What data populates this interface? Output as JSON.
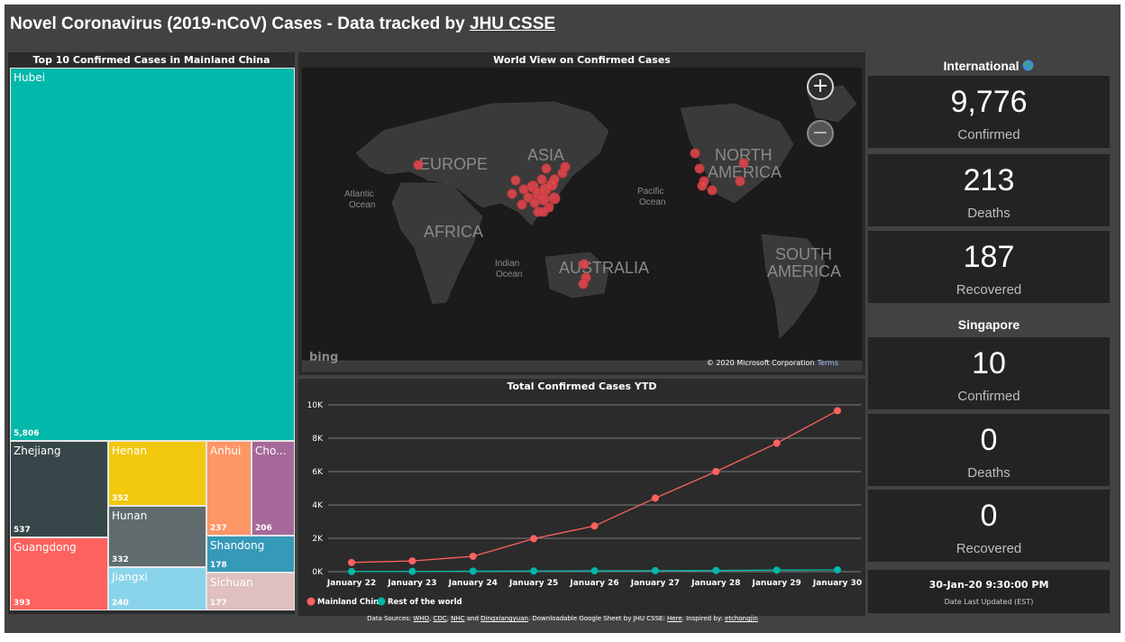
{
  "title": {
    "text": "Novel Coronavirus (2019-nCoV) Cases - Data tracked by ",
    "link": "JHU CSSE"
  },
  "treemap": {
    "title": "Top 10 Confirmed Cases in Mainland China",
    "items": [
      {
        "name": "Hubei",
        "value": "5,806",
        "color": "#01b8aa"
      },
      {
        "name": "Zhejiang",
        "value": "537",
        "color": "#374649"
      },
      {
        "name": "Guangdong",
        "value": "393",
        "color": "#fd625e"
      },
      {
        "name": "Henan",
        "value": "352",
        "color": "#f2c80f"
      },
      {
        "name": "Hunan",
        "value": "332",
        "color": "#5f6b6d"
      },
      {
        "name": "Jiangxi",
        "value": "240",
        "color": "#8ad4eb"
      },
      {
        "name": "Anhui",
        "value": "237",
        "color": "#fe9666"
      },
      {
        "name": "Cho...",
        "value": "206",
        "color": "#a66999"
      },
      {
        "name": "Shandong",
        "value": "178",
        "color": "#3599b8"
      },
      {
        "name": "Sichuan",
        "value": "177",
        "color": "#dfbfbf"
      }
    ]
  },
  "map": {
    "title": "World View on Confirmed Cases",
    "zoom_in": "+",
    "zoom_out": "−",
    "labels": {
      "europe": "EUROPE",
      "asia": "ASIA",
      "africa": "AFRICA",
      "australia": "AUSTRALIA",
      "north_america_1": "NORTH",
      "north_america_2": "AMERICA",
      "south_america_1": "SOUTH",
      "south_america_2": "AMERICA",
      "atlantic_1": "Atlantic",
      "atlantic_2": "Ocean",
      "pacific_1": "Pacific",
      "pacific_2": "Ocean",
      "indian_1": "Indian",
      "indian_2": "Ocean"
    },
    "logo": "bing",
    "copyright": "© 2020 Microsoft Corporation",
    "terms": "Terms",
    "bubble_color": "#e8474c"
  },
  "linechart": {
    "title": "Total Confirmed Cases YTD"
  },
  "chart_data": {
    "type": "line",
    "title": "Total Confirmed Cases YTD",
    "x": [
      "January 22",
      "January 23",
      "January 24",
      "January 25",
      "January 26",
      "January 27",
      "January 28",
      "January 29",
      "January 30"
    ],
    "yticks": [
      "0K",
      "2K",
      "4K",
      "6K",
      "8K",
      "10K"
    ],
    "ylim": [
      0,
      10000
    ],
    "grid": true,
    "legend": "bottom-left",
    "series": [
      {
        "name": "Mainland China",
        "color": "#fd625e",
        "values": [
          550,
          640,
          920,
          1980,
          2740,
          4410,
          6000,
          7700,
          9650
        ]
      },
      {
        "name": "Rest of the world",
        "color": "#01b8aa",
        "values": [
          10,
          15,
          30,
          40,
          50,
          60,
          70,
          90,
          110
        ]
      }
    ]
  },
  "international": {
    "title": "International",
    "confirmed": {
      "value": "9,776",
      "label": "Confirmed"
    },
    "deaths": {
      "value": "213",
      "label": "Deaths"
    },
    "recovered": {
      "value": "187",
      "label": "Recovered"
    }
  },
  "singapore": {
    "title": "Singapore",
    "confirmed": {
      "value": "10",
      "label": "Confirmed"
    },
    "deaths": {
      "value": "0",
      "label": "Deaths"
    },
    "recovered": {
      "value": "0",
      "label": "Recovered"
    }
  },
  "last_updated": {
    "value": "30-Jan-20 9:30:00 PM",
    "label": "Date Last Updated (EST)"
  },
  "footer": {
    "prefix": "Data Sources: ",
    "src1": "WHO",
    "sep1": ", ",
    "src2": "CDC",
    "sep2": ", ",
    "src3": "NHC",
    "and": " and ",
    "src4": "Dingxiangyuan",
    "mid": ".  Downloadable Google Sheet by JHU CSSE: ",
    "here": "Here",
    "inspired": ".  Inspired by: ",
    "author": "etchongjin"
  }
}
